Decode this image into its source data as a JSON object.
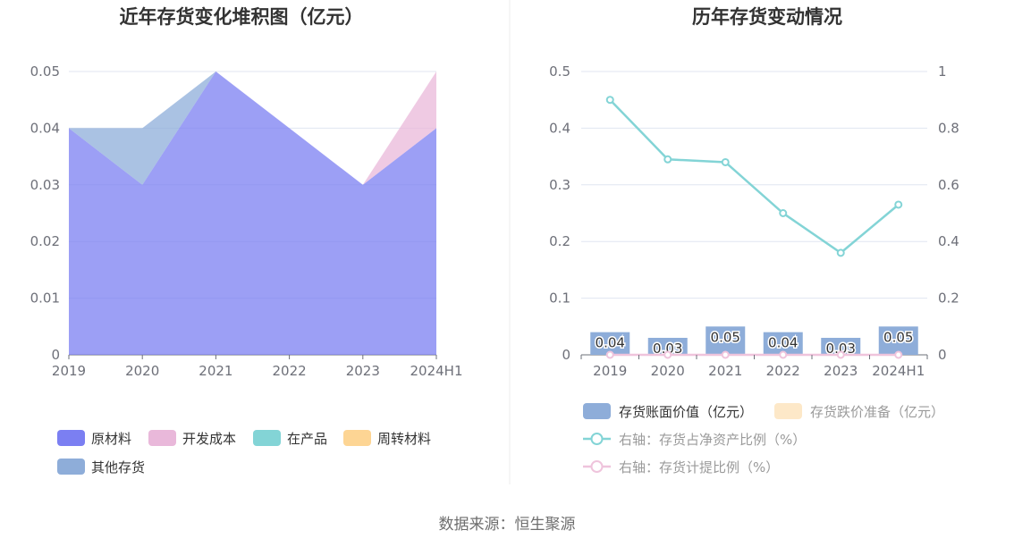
{
  "chart_data": [
    {
      "type": "area",
      "stacked": true,
      "title": "近年存货变化堆积图（亿元）",
      "categories": [
        "2019",
        "2020",
        "2021",
        "2022",
        "2023",
        "2024H1"
      ],
      "y_ticks": [
        "0",
        "0.01",
        "0.02",
        "0.03",
        "0.04",
        "0.05"
      ],
      "ylim": [
        0,
        0.05
      ],
      "grid": true,
      "legend_position": "bottom-left",
      "series": [
        {
          "name": "原材料",
          "color": "#7b7ff2",
          "values": [
            0.04,
            0.03,
            0.05,
            0.04,
            0.03,
            0.04
          ]
        },
        {
          "name": "开发成本",
          "color": "#e9b8da",
          "values": [
            0,
            0,
            0,
            0,
            0,
            0.01
          ]
        },
        {
          "name": "在产品",
          "color": "#83d4d6",
          "values": [
            0,
            0,
            0,
            0,
            0,
            0
          ]
        },
        {
          "name": "周转材料",
          "color": "#fdd594",
          "values": [
            0,
            0,
            0,
            0,
            0,
            0
          ]
        },
        {
          "name": "其他存货",
          "color": "#8eadd9",
          "values": [
            0,
            0.01,
            0,
            0,
            0,
            0
          ]
        }
      ]
    },
    {
      "type": "bar+line",
      "title": "历年存货变动情况",
      "categories": [
        "2019",
        "2020",
        "2021",
        "2022",
        "2023",
        "2024H1"
      ],
      "y_left_ticks": [
        "0",
        "0.1",
        "0.2",
        "0.3",
        "0.4",
        "0.5"
      ],
      "y_left_lim": [
        0,
        0.5
      ],
      "y_right_ticks": [
        "0",
        "0.2",
        "0.4",
        "0.6",
        "0.8",
        "1"
      ],
      "y_right_lim": [
        0,
        1
      ],
      "grid": true,
      "legend_position": "bottom",
      "bars": [
        {
          "name": "存货账面价值（亿元）",
          "color": "#8eadd9",
          "values": [
            0.04,
            0.03,
            0.05,
            0.04,
            0.03,
            0.05
          ],
          "labels": [
            "0.04",
            "0.03",
            "0.05",
            "0.04",
            "0.03",
            "0.05"
          ]
        },
        {
          "name": "存货跌价准备（亿元）",
          "color": "#fde8c8",
          "values": [
            0,
            0,
            0,
            0,
            0,
            0
          ]
        }
      ],
      "lines": [
        {
          "name": "右轴：存货占净资产比例（%）",
          "color": "#83d4d6",
          "axis": "right",
          "values": [
            0.9,
            0.69,
            0.68,
            0.5,
            0.36,
            0.53
          ]
        },
        {
          "name": "右轴：存货计提比例（%）",
          "color": "#efc4dc",
          "axis": "right",
          "values": [
            0,
            0,
            0,
            0,
            0,
            0
          ]
        }
      ]
    }
  ],
  "footer": {
    "source": "数据来源：恒生聚源"
  }
}
